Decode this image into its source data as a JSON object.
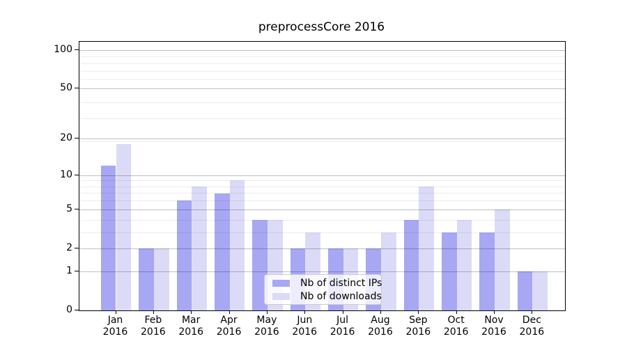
{
  "chart_data": {
    "type": "bar",
    "title": "preprocessCore 2016",
    "year": "2016",
    "categories": [
      "Jan",
      "Feb",
      "Mar",
      "Apr",
      "May",
      "Jun",
      "Jul",
      "Aug",
      "Sep",
      "Oct",
      "Nov",
      "Dec"
    ],
    "series": [
      {
        "key": "distinct-ips",
        "name": "Nb of distinct IPs",
        "color": "#a7a7f4",
        "values": [
          12,
          2,
          6,
          7,
          4,
          2,
          2,
          2,
          4,
          3,
          3,
          1
        ]
      },
      {
        "key": "downloads",
        "name": "Nb of downloads",
        "color": "#dbdbf8",
        "values": [
          18,
          2,
          8,
          9,
          4,
          3,
          2,
          3,
          8,
          4,
          5,
          1
        ]
      }
    ],
    "y_axis": {
      "ticks": [
        0,
        1,
        2,
        5,
        10,
        20,
        50,
        100
      ],
      "minor_ticks": [
        3,
        4,
        6,
        7,
        8,
        9,
        19,
        29,
        39,
        59,
        69,
        79,
        89
      ],
      "scale": "log10(1+x)",
      "max": 100
    },
    "xlabel": "",
    "ylabel": "",
    "grid": true,
    "legend_position": "inside-bottom-center",
    "colors": {
      "background": "#ffffff",
      "axis": "#000000",
      "major_grid": "#c8c8c8",
      "minor_grid": "#ececec",
      "legend_border": "#cccccc"
    }
  }
}
